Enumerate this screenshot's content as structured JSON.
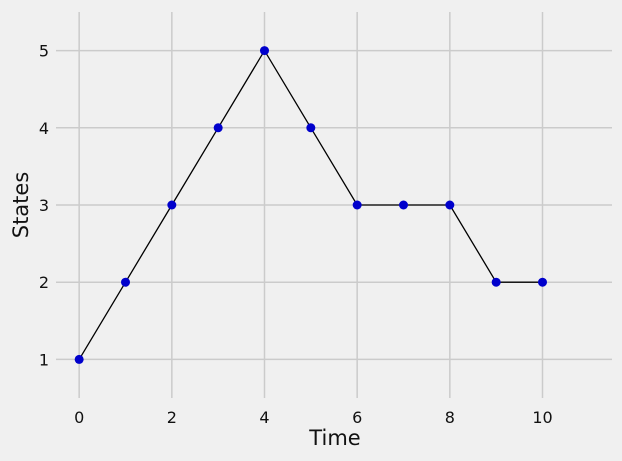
{
  "chart_data": {
    "type": "line",
    "xlabel": "Time",
    "ylabel": "States",
    "xlim": [
      -0.5,
      11.5
    ],
    "ylim": [
      0.5,
      5.5
    ],
    "x_ticks": [
      0,
      2,
      4,
      6,
      8,
      10
    ],
    "y_ticks": [
      1,
      2,
      3,
      4,
      5
    ],
    "grid": true,
    "series": [
      {
        "x": [
          0,
          1,
          2,
          3,
          4,
          5,
          6,
          7,
          8,
          9,
          10
        ],
        "y": [
          1,
          2,
          3,
          4,
          5,
          4,
          3,
          3,
          3,
          2,
          2
        ]
      }
    ]
  },
  "colors": {
    "background": "#f0f0f0",
    "grid": "#cbcbcb",
    "line": "#000000",
    "marker": "#0000cc"
  }
}
